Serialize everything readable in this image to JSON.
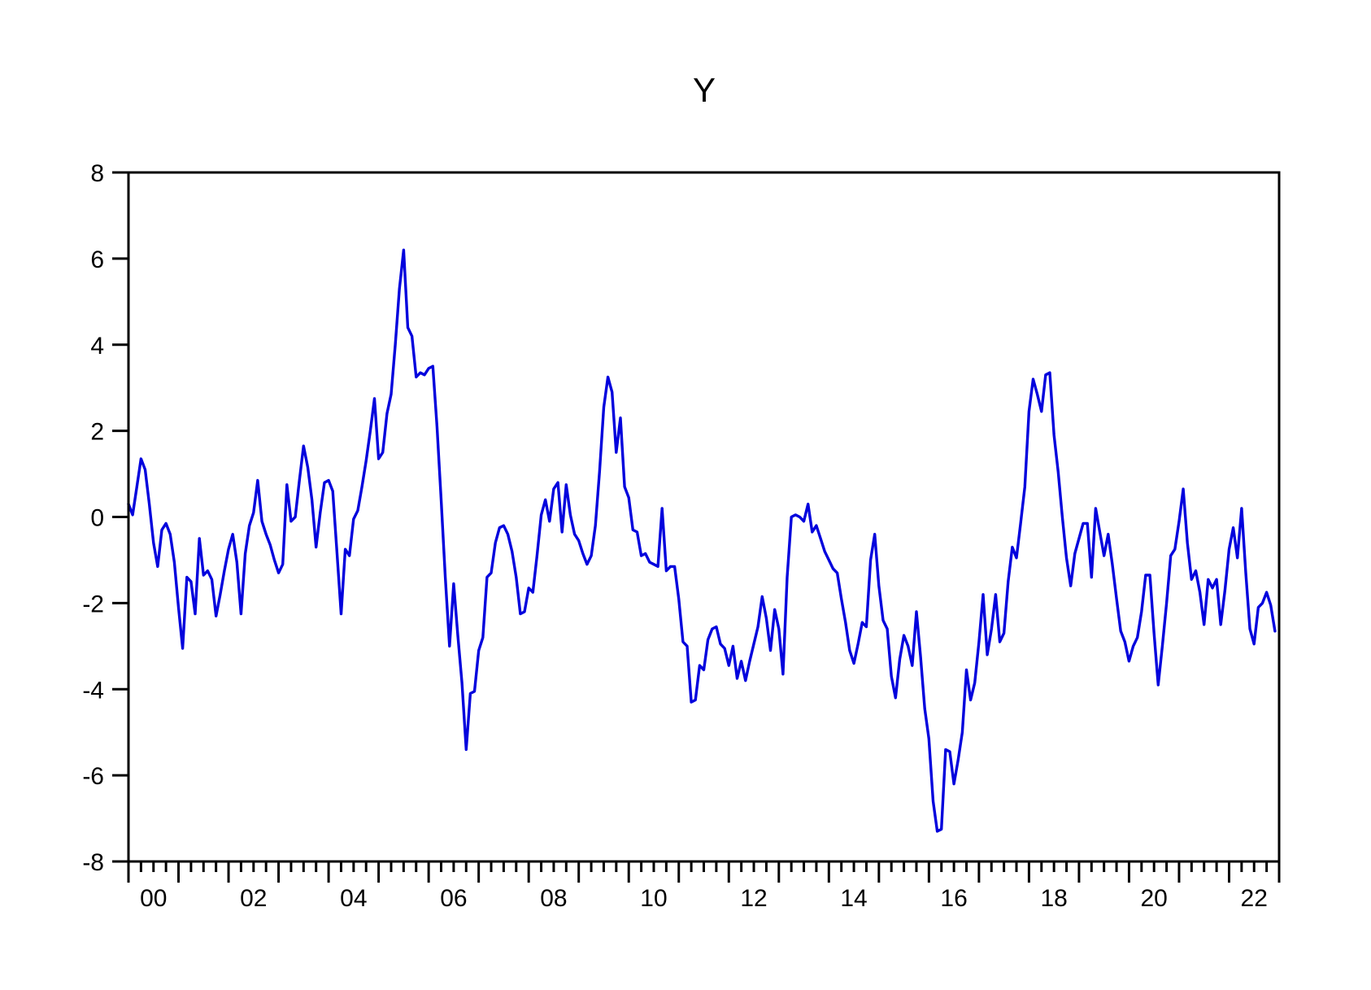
{
  "title": "Y",
  "colors": {
    "line": "#0202dd",
    "frame": "#000000",
    "background": "#ffffff",
    "text": "#000000"
  },
  "y_axis": {
    "tick_labels": [
      "8",
      "6",
      "4",
      "2",
      "0",
      "-2",
      "-4",
      "-6",
      "-8"
    ]
  },
  "x_axis": {
    "tick_labels": [
      "00",
      "02",
      "04",
      "06",
      "08",
      "10",
      "12",
      "14",
      "16",
      "18",
      "20",
      "22"
    ]
  },
  "chart_data": {
    "type": "line",
    "title": "Y",
    "series_name": "Y",
    "frequency": "monthly",
    "x_start": "2000M01",
    "x_end": "2022M12",
    "xlim_years": [
      2000,
      2023
    ],
    "ylim": [
      -8,
      8
    ],
    "y_ticks": [
      8,
      6,
      4,
      2,
      0,
      -2,
      -4,
      -6,
      -8
    ],
    "x_year_tick_step_years": 1,
    "x_minor_ticks_per_year": 4,
    "x_label_years": [
      2000,
      2002,
      2004,
      2006,
      2008,
      2010,
      2012,
      2014,
      2016,
      2018,
      2020,
      2022
    ],
    "grid": false,
    "legend": "none",
    "values": [
      0.3,
      0.05,
      0.7,
      1.35,
      1.1,
      0.3,
      -0.6,
      -1.15,
      -0.3,
      -0.15,
      -0.4,
      -1.05,
      -2.1,
      -3.05,
      -1.4,
      -1.5,
      -2.25,
      -0.5,
      -1.35,
      -1.25,
      -1.45,
      -2.3,
      -1.8,
      -1.25,
      -0.75,
      -0.4,
      -1.05,
      -2.25,
      -0.85,
      -0.2,
      0.1,
      0.85,
      -0.1,
      -0.4,
      -0.65,
      -1.0,
      -1.3,
      -1.1,
      0.75,
      -0.1,
      0.0,
      0.85,
      1.65,
      1.15,
      0.4,
      -0.7,
      0.1,
      0.8,
      0.85,
      0.6,
      -0.8,
      -2.25,
      -0.75,
      -0.9,
      -0.05,
      0.15,
      0.7,
      1.3,
      2.0,
      2.75,
      1.35,
      1.5,
      2.4,
      2.85,
      4.0,
      5.3,
      6.2,
      4.4,
      4.2,
      3.25,
      3.35,
      3.3,
      3.45,
      3.5,
      2.1,
      0.4,
      -1.4,
      -3.0,
      -1.55,
      -2.75,
      -3.85,
      -5.4,
      -4.1,
      -4.05,
      -3.1,
      -2.8,
      -1.4,
      -1.3,
      -0.6,
      -0.25,
      -0.2,
      -0.4,
      -0.8,
      -1.4,
      -2.25,
      -2.2,
      -1.65,
      -1.75,
      -0.9,
      0.05,
      0.4,
      -0.1,
      0.65,
      0.8,
      -0.35,
      0.75,
      0.05,
      -0.4,
      -0.55,
      -0.85,
      -1.1,
      -0.9,
      -0.2,
      1.05,
      2.55,
      3.25,
      2.9,
      1.5,
      2.3,
      0.7,
      0.45,
      -0.3,
      -0.35,
      -0.9,
      -0.85,
      -1.05,
      -1.1,
      -1.15,
      0.2,
      -1.25,
      -1.15,
      -1.15,
      -1.9,
      -2.9,
      -3.0,
      -4.3,
      -4.25,
      -3.45,
      -3.55,
      -2.85,
      -2.6,
      -2.55,
      -2.95,
      -3.05,
      -3.45,
      -3.0,
      -3.75,
      -3.35,
      -3.8,
      -3.35,
      -2.95,
      -2.55,
      -1.85,
      -2.35,
      -3.1,
      -2.15,
      -2.6,
      -3.65,
      -1.4,
      0.0,
      0.05,
      0.0,
      -0.1,
      0.3,
      -0.35,
      -0.2,
      -0.5,
      -0.8,
      -1.0,
      -1.2,
      -1.3,
      -1.9,
      -2.45,
      -3.1,
      -3.4,
      -2.95,
      -2.45,
      -2.55,
      -1.0,
      -0.4,
      -1.6,
      -2.4,
      -2.6,
      -3.7,
      -4.2,
      -3.3,
      -2.75,
      -3.0,
      -3.45,
      -2.2,
      -3.25,
      -4.45,
      -5.15,
      -6.6,
      -7.3,
      -7.25,
      -5.4,
      -5.45,
      -6.2,
      -5.65,
      -5.0,
      -3.55,
      -4.25,
      -3.85,
      -2.9,
      -1.8,
      -3.2,
      -2.6,
      -1.8,
      -2.9,
      -2.7,
      -1.5,
      -0.7,
      -0.95,
      -0.15,
      0.7,
      2.45,
      3.2,
      2.85,
      2.45,
      3.3,
      3.35,
      1.9,
      1.05,
      0.0,
      -0.95,
      -1.6,
      -0.85,
      -0.5,
      -0.15,
      -0.15,
      -1.4,
      0.2,
      -0.35,
      -0.9,
      -0.4,
      -1.1,
      -1.9,
      -2.65,
      -2.9,
      -3.35,
      -3.0,
      -2.8,
      -2.2,
      -1.35,
      -1.35,
      -2.7,
      -3.9,
      -3.0,
      -2.0,
      -0.9,
      -0.75,
      -0.1,
      0.65,
      -0.6,
      -1.45,
      -1.25,
      -1.75,
      -2.5,
      -1.45,
      -1.65,
      -1.45,
      -2.5,
      -1.7,
      -0.75,
      -0.25,
      -0.95,
      0.2,
      -1.3,
      -2.6,
      -2.95,
      -2.1,
      -2.0,
      -1.75,
      -2.05,
      -2.65
    ]
  }
}
